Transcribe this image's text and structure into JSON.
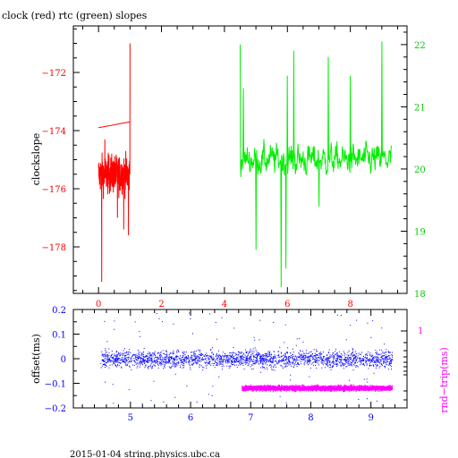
{
  "title": "clock (red) rtc (green) slopes",
  "footer": "2015-01-04 string.physics.ubc.ca",
  "colors": {
    "clock": "#ff0000",
    "rtc": "#00ee00",
    "offset": "#0000ff",
    "rndtrip": "#ff00ff",
    "axes": "#000000"
  },
  "chart_data": [
    {
      "type": "line",
      "title": "clock (red) rtc (green) slopes",
      "xlabel": "",
      "ylabel": "clockslope",
      "ylabel_right": "",
      "xlim": [
        -0.8,
        9.8
      ],
      "ylim": [
        -179.6,
        -170.4
      ],
      "ylim_right": [
        18.0,
        22.3
      ],
      "x_ticks": [
        0,
        2,
        4,
        6,
        8
      ],
      "y_ticks": [
        -178,
        -176,
        -174,
        -172
      ],
      "y_ticks_right": [
        18,
        19,
        20,
        21,
        22
      ],
      "tick_color_x": "#ff0000",
      "series": [
        {
          "axis": "left",
          "color": "#ff0000",
          "x_range": [
            0.0,
            1.0
          ],
          "baseline": -175.5,
          "noise": 0.7,
          "step_line": [
            [
              0.0,
              -173.9
            ],
            [
              1.0,
              -173.7
            ]
          ],
          "spikes": [
            [
              0.1,
              -179.2
            ],
            [
              0.6,
              -177.0
            ],
            [
              0.8,
              -177.4
            ],
            [
              0.95,
              -177.6
            ],
            [
              1.0,
              -171.0
            ],
            [
              0.2,
              -174.3
            ]
          ]
        },
        {
          "axis": "right",
          "color": "#00ee00",
          "x_range": [
            4.5,
            9.3
          ],
          "baseline": 20.15,
          "noise": 0.25,
          "spikes": [
            [
              4.5,
              22.0
            ],
            [
              4.6,
              21.3
            ],
            [
              5.0,
              18.7
            ],
            [
              5.8,
              18.1
            ],
            [
              5.95,
              18.4
            ],
            [
              6.2,
              21.9
            ],
            [
              7.3,
              21.8
            ],
            [
              8.0,
              21.5
            ],
            [
              9.0,
              22.05
            ],
            [
              7.0,
              19.4
            ],
            [
              6.0,
              21.5
            ]
          ]
        }
      ]
    },
    {
      "type": "scatter",
      "xlabel": "",
      "ylabel": "offset(ms)",
      "ylabel_right": "rnd−trip(ms)",
      "xlim": [
        4.05,
        9.6
      ],
      "ylim": [
        -0.2,
        0.2
      ],
      "x_ticks": [
        5,
        6,
        7,
        8,
        9
      ],
      "y_ticks": [
        -0.2,
        -0.1,
        0,
        0.1,
        0.2
      ],
      "y_tick_labels": [
        "−0.2",
        "−0.1",
        "0",
        "0.1",
        "0.2"
      ],
      "y_ticks_right": [
        1
      ],
      "series": [
        {
          "name": "offset",
          "axis": "left",
          "color": "#0000ff",
          "x_range": [
            4.5,
            9.35
          ],
          "center": 0.0,
          "spread": 0.045,
          "outlier_spread": 0.19
        },
        {
          "name": "rnd-trip",
          "axis": "right",
          "color": "#ff00ff",
          "x_range": [
            6.85,
            9.35
          ],
          "center_in_offset_units": -0.118,
          "spread_in_offset_units": 0.012
        }
      ]
    }
  ]
}
